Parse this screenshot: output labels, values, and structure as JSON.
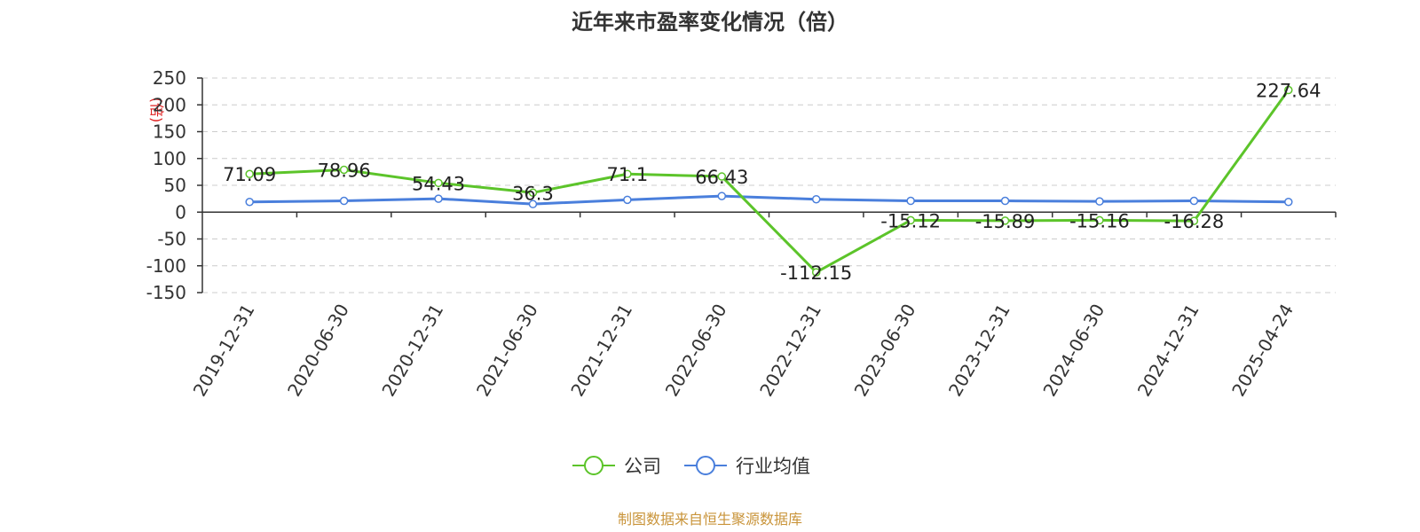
{
  "chart_data": {
    "type": "line",
    "title": "近年来市盈率变化情况（倍）",
    "ylabel": "(倍)",
    "ylim": [
      -150,
      250
    ],
    "yticks": [
      250,
      200,
      150,
      100,
      50,
      0,
      -50,
      -100,
      -150
    ],
    "grid": true,
    "legend_position": "bottom",
    "categories": [
      "2019-12-31",
      "2020-06-30",
      "2020-12-31",
      "2021-06-30",
      "2021-12-31",
      "2022-06-30",
      "2022-12-31",
      "2023-06-30",
      "2023-12-31",
      "2024-06-30",
      "2024-12-31",
      "2025-04-24"
    ],
    "series": [
      {
        "name": "公司",
        "color": "#5cc42a",
        "values": [
          71.09,
          78.96,
          54.43,
          36.3,
          71.1,
          66.43,
          -112.15,
          -15.12,
          -15.89,
          -15.16,
          -16.28,
          227.64
        ],
        "labels": [
          "71.09",
          "78.96",
          "54.43",
          "36.3",
          "71.1",
          "66.43",
          "-112.15",
          "-15.12",
          "-15.89",
          "-15.16",
          "-16.28",
          "227.64"
        ]
      },
      {
        "name": "行业均值",
        "color": "#4a7fdc",
        "values": [
          19,
          21,
          25,
          15,
          23,
          30,
          24,
          21,
          21,
          20,
          21,
          19
        ]
      }
    ],
    "source": "制图数据来自恒生聚源数据库",
    "source_color": "#c9943a",
    "ylabel_color": "#e02020"
  }
}
